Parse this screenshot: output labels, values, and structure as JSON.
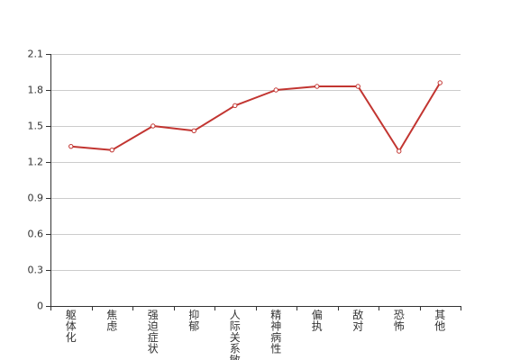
{
  "chart_data": {
    "type": "line",
    "categories": [
      "躯体化",
      "焦虑",
      "强迫症状",
      "抑郁",
      "人际关系敏感",
      "精神病性",
      "偏执",
      "敌对",
      "恐怖",
      "其他"
    ],
    "series": [
      {
        "values": [
          1.33,
          1.3,
          1.5,
          1.46,
          1.67,
          1.8,
          1.83,
          1.83,
          1.29,
          1.86
        ]
      }
    ],
    "y_ticks": [
      "0",
      "0.3",
      "0.6",
      "0.9",
      "1.2",
      "1.5",
      "1.8",
      "2.1"
    ],
    "ylim": [
      0,
      2.1
    ],
    "grid": true,
    "colors": {
      "line": "#c23531",
      "grid": "#cccccc",
      "axis": "#333333"
    }
  }
}
